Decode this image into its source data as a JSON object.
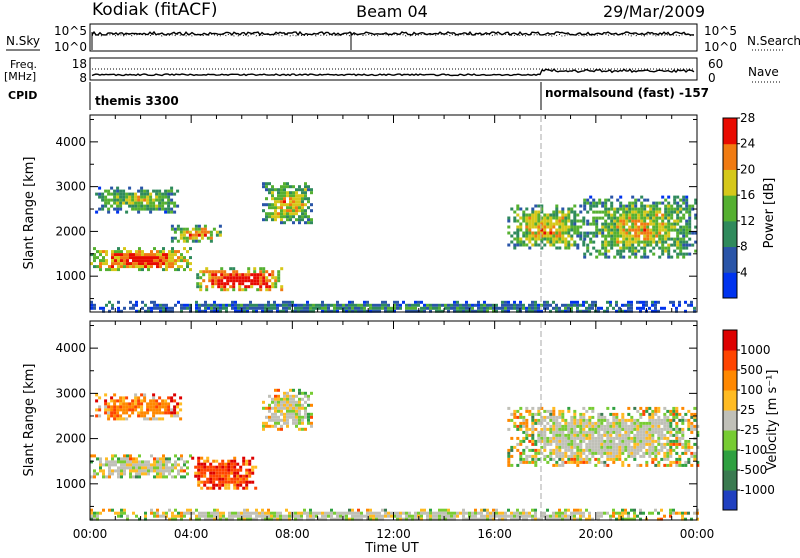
{
  "header": {
    "station": "Kodiak (fitACF)",
    "beam": "Beam 04",
    "date": "29/Mar/2009"
  },
  "strips": {
    "nsky_label": "N.Sky",
    "nsearch_label": "N.Search",
    "noise_ticks": [
      "10^5",
      "10^0"
    ],
    "freq_label": "Freq.",
    "freq_unit": "[MHz]",
    "freq_ticks": [
      "18",
      "8"
    ],
    "nave_label": "Nave",
    "nave_ticks": [
      "60",
      "0"
    ],
    "cpid_label": "CPID",
    "cpid_modes": [
      {
        "name": "themis 3300",
        "start_hour": 0,
        "end_hour": 18
      },
      {
        "name": "normalsound (fast) -157",
        "start_hour": 18,
        "end_hour": 24
      }
    ]
  },
  "chart_data": [
    {
      "type": "heatmap",
      "panel": "power",
      "xlabel": "",
      "ylabel": "Slant Range [km]",
      "ylim": [
        200,
        4600
      ],
      "yticks": [
        1000,
        2000,
        3000,
        4000
      ],
      "xlim": [
        0,
        24
      ],
      "colorbar": {
        "label": "Power [dB]",
        "ticks": [
          "4",
          "8",
          "12",
          "16",
          "20",
          "24",
          "28"
        ],
        "colors": [
          "#0033ee",
          "#2a55a8",
          "#2f8a5c",
          "#55b030",
          "#d6c81a",
          "#f07b12",
          "#e80a00"
        ]
      },
      "regions": [
        {
          "t0": 0.0,
          "t1": 4.0,
          "r0": 1150,
          "r1": 1650,
          "level": 0.85
        },
        {
          "t0": 3.2,
          "t1": 5.2,
          "r0": 1800,
          "r1": 2150,
          "level": 0.7
        },
        {
          "t0": 4.2,
          "t1": 7.6,
          "r0": 700,
          "r1": 1200,
          "level": 0.95
        },
        {
          "t0": 0.2,
          "t1": 3.6,
          "r0": 2450,
          "r1": 3000,
          "level": 0.5
        },
        {
          "t0": 6.8,
          "t1": 8.8,
          "r0": 2200,
          "r1": 3100,
          "level": 0.6
        },
        {
          "t0": 16.5,
          "t1": 19.5,
          "r0": 1600,
          "r1": 2600,
          "level": 0.6
        },
        {
          "t0": 19.5,
          "t1": 24.0,
          "r0": 1400,
          "r1": 2800,
          "level": 0.55
        },
        {
          "t0": 0.0,
          "t1": 24.0,
          "r0": 200,
          "r1": 450,
          "level": 0.3
        }
      ]
    },
    {
      "type": "heatmap",
      "panel": "velocity",
      "xlabel": "Time UT",
      "ylabel": "Slant Range [km]",
      "ylim": [
        200,
        4600
      ],
      "yticks": [
        1000,
        2000,
        3000,
        4000
      ],
      "xlim": [
        0,
        24
      ],
      "xticks": [
        "00:00",
        "04:00",
        "08:00",
        "12:00",
        "16:00",
        "20:00",
        "00:00"
      ],
      "colorbar": {
        "label": "Velocity [m s⁻¹]",
        "ticks": [
          "1000",
          "500",
          "100",
          "25",
          "-25",
          "-100",
          "-500",
          "-1000"
        ],
        "colors": [
          "#2040c0",
          "#3a7a50",
          "#2ea040",
          "#77cc33",
          "#c0c0b8",
          "#ffbb22",
          "#ff8800",
          "#ff4400",
          "#dd0000"
        ]
      },
      "regions": [
        {
          "t0": 0.0,
          "t1": 4.0,
          "r0": 1150,
          "r1": 1650,
          "level": 0.5
        },
        {
          "t0": 4.0,
          "t1": 6.5,
          "r0": 900,
          "r1": 1600,
          "level": 0.85
        },
        {
          "t0": 0.2,
          "t1": 3.6,
          "r0": 2450,
          "r1": 3000,
          "level": 0.75
        },
        {
          "t0": 6.8,
          "t1": 8.8,
          "r0": 2200,
          "r1": 3100,
          "level": 0.5
        },
        {
          "t0": 16.5,
          "t1": 24.0,
          "r0": 1400,
          "r1": 2700,
          "level": 0.5
        },
        {
          "t0": 0.0,
          "t1": 24.0,
          "r0": 200,
          "r1": 450,
          "level": 0.5
        }
      ]
    }
  ]
}
